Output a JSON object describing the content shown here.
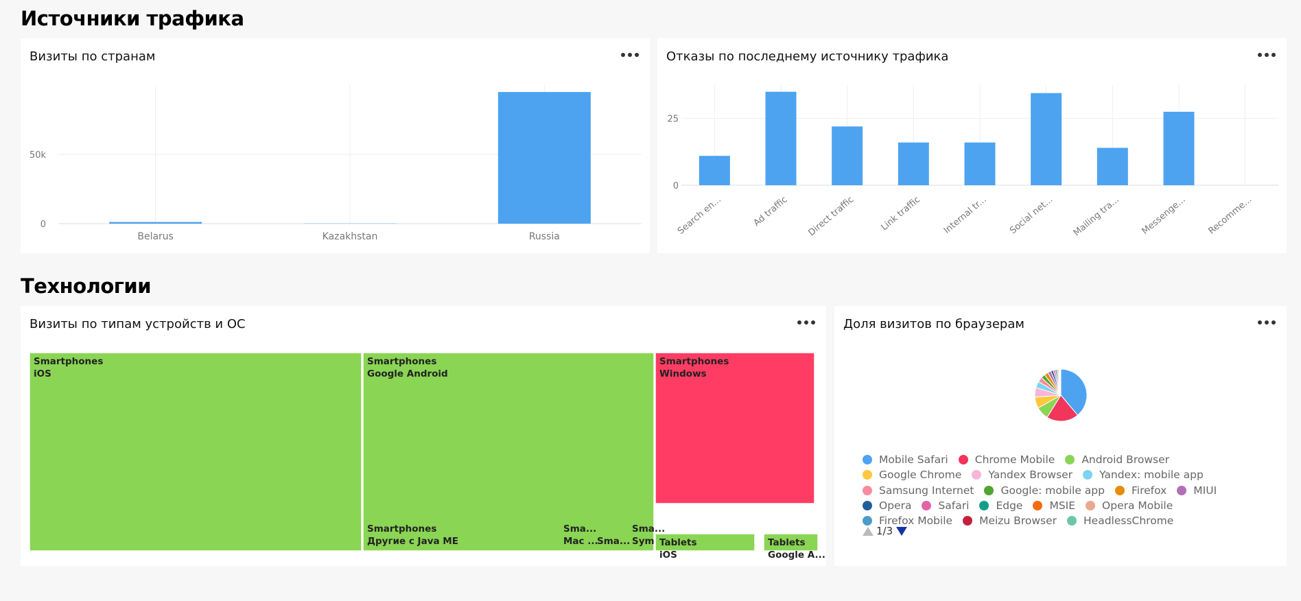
{
  "sections": {
    "traffic_title": "Источники трафика",
    "tech_title": "Технологии"
  },
  "cards": {
    "visits_by_country": "Визиты по странам",
    "bounces_by_source": "Отказы по последнему источнику трафика",
    "visits_by_device_os": "Визиты по типам устройств и ОС",
    "browser_share": "Доля визитов по браузерам"
  },
  "chart_data": [
    {
      "type": "bar",
      "title": "Визиты по странам",
      "categories": [
        "Belarus",
        "Kazakhstan",
        "Russia"
      ],
      "values": [
        1200,
        150,
        95000
      ],
      "ylim": [
        0,
        100000
      ],
      "yticks": [
        0,
        50000
      ],
      "ytick_labels": [
        "0",
        "50k"
      ],
      "grid": true
    },
    {
      "type": "bar",
      "title": "Отказы по последнему источнику трафика",
      "categories": [
        "Search en...",
        "Ad traffic",
        "Direct traffic",
        "Link traffic",
        "Internal tr...",
        "Social net...",
        "Mailing tra...",
        "Messenge...",
        "Recomme..."
      ],
      "values": [
        11,
        35,
        22,
        16,
        16,
        34.5,
        14,
        27.5,
        0
      ],
      "ylim": [
        0,
        37.5
      ],
      "yticks": [
        0,
        25
      ],
      "ytick_labels": [
        "0",
        "25"
      ],
      "grid": true
    },
    {
      "type": "treemap",
      "title": "Визиты по типам устройств и ОС",
      "cells": [
        {
          "label1": "Smartphones",
          "label2": "iOS",
          "color": "#8ad554"
        },
        {
          "label1": "Smartphones",
          "label2": "Google Android",
          "color": "#8ad554"
        },
        {
          "label1": "Smartphones",
          "label2": "Другие с Java ME",
          "color": "#8ad554"
        },
        {
          "label1": "Sma...",
          "label2": "Mac ...",
          "color": "#8ad554"
        },
        {
          "label1": "Sma...",
          "label2": "",
          "color": "#8ad554"
        },
        {
          "label1": "Sma...",
          "label2": "Sym...",
          "color": "#8ad554"
        },
        {
          "label1": "Smartphones",
          "label2": "Windows",
          "color": "#ff3d64"
        },
        {
          "label1": "Tablets",
          "label2": "iOS",
          "color": "#8ad554"
        },
        {
          "label1": "Tablets",
          "label2": "Google A...",
          "color": "#8ad554"
        }
      ]
    },
    {
      "type": "pie",
      "title": "Доля визитов по браузерам",
      "slices": [
        {
          "name": "Mobile Safari",
          "value": 39,
          "color": "#4da3f0"
        },
        {
          "name": "Chrome Mobile",
          "value": 20,
          "color": "#f2355b"
        },
        {
          "name": "Android Browser",
          "value": 8,
          "color": "#8ad554"
        },
        {
          "name": "Google Chrome",
          "value": 7,
          "color": "#ffc73d"
        },
        {
          "name": "Yandex Browser",
          "value": 6,
          "color": "#f7b6d9"
        },
        {
          "name": "Yandex: mobile app",
          "value": 4,
          "color": "#7dd3f0"
        },
        {
          "name": "Samsung Internet",
          "value": 3,
          "color": "#f78c9c"
        },
        {
          "name": "Google: mobile app",
          "value": 2.5,
          "color": "#52a332"
        },
        {
          "name": "Firefox",
          "value": 2.5,
          "color": "#e88b0c"
        },
        {
          "name": "MIUI",
          "value": 2,
          "color": "#b170b7"
        },
        {
          "name": "Opera",
          "value": 1.5,
          "color": "#1f5f99"
        },
        {
          "name": "Safari",
          "value": 1.2,
          "color": "#e363a8"
        },
        {
          "name": "Edge",
          "value": 1,
          "color": "#149e8a"
        },
        {
          "name": "MSIE",
          "value": 0.8,
          "color": "#f56a0f"
        },
        {
          "name": "Opera Mobile",
          "value": 0.6,
          "color": "#e8a890"
        },
        {
          "name": "Firefox Mobile",
          "value": 0.5,
          "color": "#4a9cc9"
        },
        {
          "name": "Meizu Browser",
          "value": 0.4,
          "color": "#c41f3e"
        },
        {
          "name": "HeadlessChrome",
          "value": 0.3,
          "color": "#6cc5a8"
        }
      ],
      "legend_rows": [
        [
          0,
          1,
          2
        ],
        [
          3,
          4,
          5
        ],
        [
          6,
          7,
          8,
          9
        ],
        [
          10,
          11,
          12,
          13,
          14
        ],
        [
          15,
          16,
          17
        ]
      ]
    }
  ],
  "legend_pager": {
    "current": "1",
    "separator": "/",
    "total": "3"
  }
}
